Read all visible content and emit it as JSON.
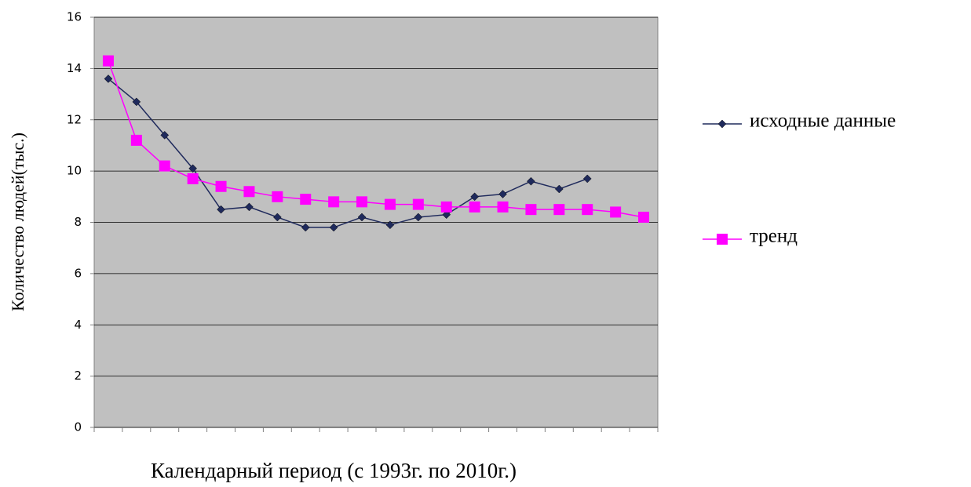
{
  "chart_data": {
    "type": "line",
    "y_label": "Количество людей(тыс.)",
    "x_label": "Календарный  период (с 1993г. по 2010г.)",
    "categories": [
      null,
      null,
      null,
      null,
      null,
      null,
      null,
      null,
      null,
      null,
      null,
      null,
      null,
      null,
      null,
      null,
      null,
      null,
      null,
      null
    ],
    "series": [
      {
        "name": "исходные данные",
        "color": "#1f2a5c",
        "marker": "diamond",
        "values": [
          13.6,
          12.7,
          11.4,
          10.1,
          8.5,
          8.6,
          8.2,
          7.8,
          7.8,
          8.2,
          7.9,
          8.2,
          8.3,
          9.0,
          9.1,
          9.6,
          9.3,
          9.7,
          null,
          null
        ]
      },
      {
        "name": "тренд",
        "color": "#ff00ff",
        "marker": "square",
        "values": [
          14.3,
          11.2,
          10.2,
          9.7,
          9.4,
          9.2,
          9.0,
          8.9,
          8.8,
          8.8,
          8.7,
          8.7,
          8.6,
          8.6,
          8.6,
          8.5,
          8.5,
          8.5,
          8.4,
          8.2
        ]
      }
    ],
    "ylim": [
      0,
      16
    ],
    "yticks": [
      0,
      2,
      4,
      6,
      8,
      10,
      12,
      14,
      16
    ],
    "grid": true,
    "legend": "right",
    "plot_background": "#c0c0c0"
  }
}
